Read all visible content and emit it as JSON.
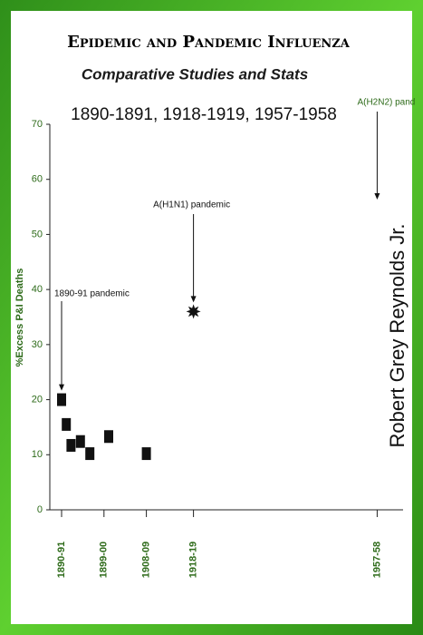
{
  "chart_data": {
    "type": "scatter",
    "title": "Epidemic and Pandemic Influenza",
    "subtitle": "Comparative Studies and Stats",
    "period": "1890-1891, 1918-1919, 1957-1958",
    "y_label": "%Excess P&I Deaths",
    "x": [
      1890,
      1891,
      1892,
      1894,
      1896,
      1900,
      1908,
      1918
    ],
    "values": [
      20,
      15.5,
      11.7,
      12.4,
      10.2,
      13.3,
      10.2,
      36
    ],
    "markers": [
      "square",
      "square",
      "square",
      "square",
      "square",
      "square",
      "square",
      "star"
    ],
    "color": "#111111",
    "xlim": [
      1887.5,
      1962.5
    ],
    "xticks": [
      {
        "value": 1890,
        "label": "1890-91"
      },
      {
        "value": 1899,
        "label": "1899-00"
      },
      {
        "value": 1908,
        "label": "1908-09"
      },
      {
        "value": 1918,
        "label": "1918-19"
      },
      {
        "value": 1957,
        "label": "1957-58"
      }
    ],
    "ylim": [
      0,
      70
    ],
    "yticks": [
      0,
      10,
      20,
      30,
      40,
      50,
      60,
      70
    ],
    "annotations": [
      "1890-91 pandemic",
      "A(H1N1) pandemic",
      "A(H2N2) pand"
    ]
  },
  "author": "Robert Grey Reynolds Jr."
}
